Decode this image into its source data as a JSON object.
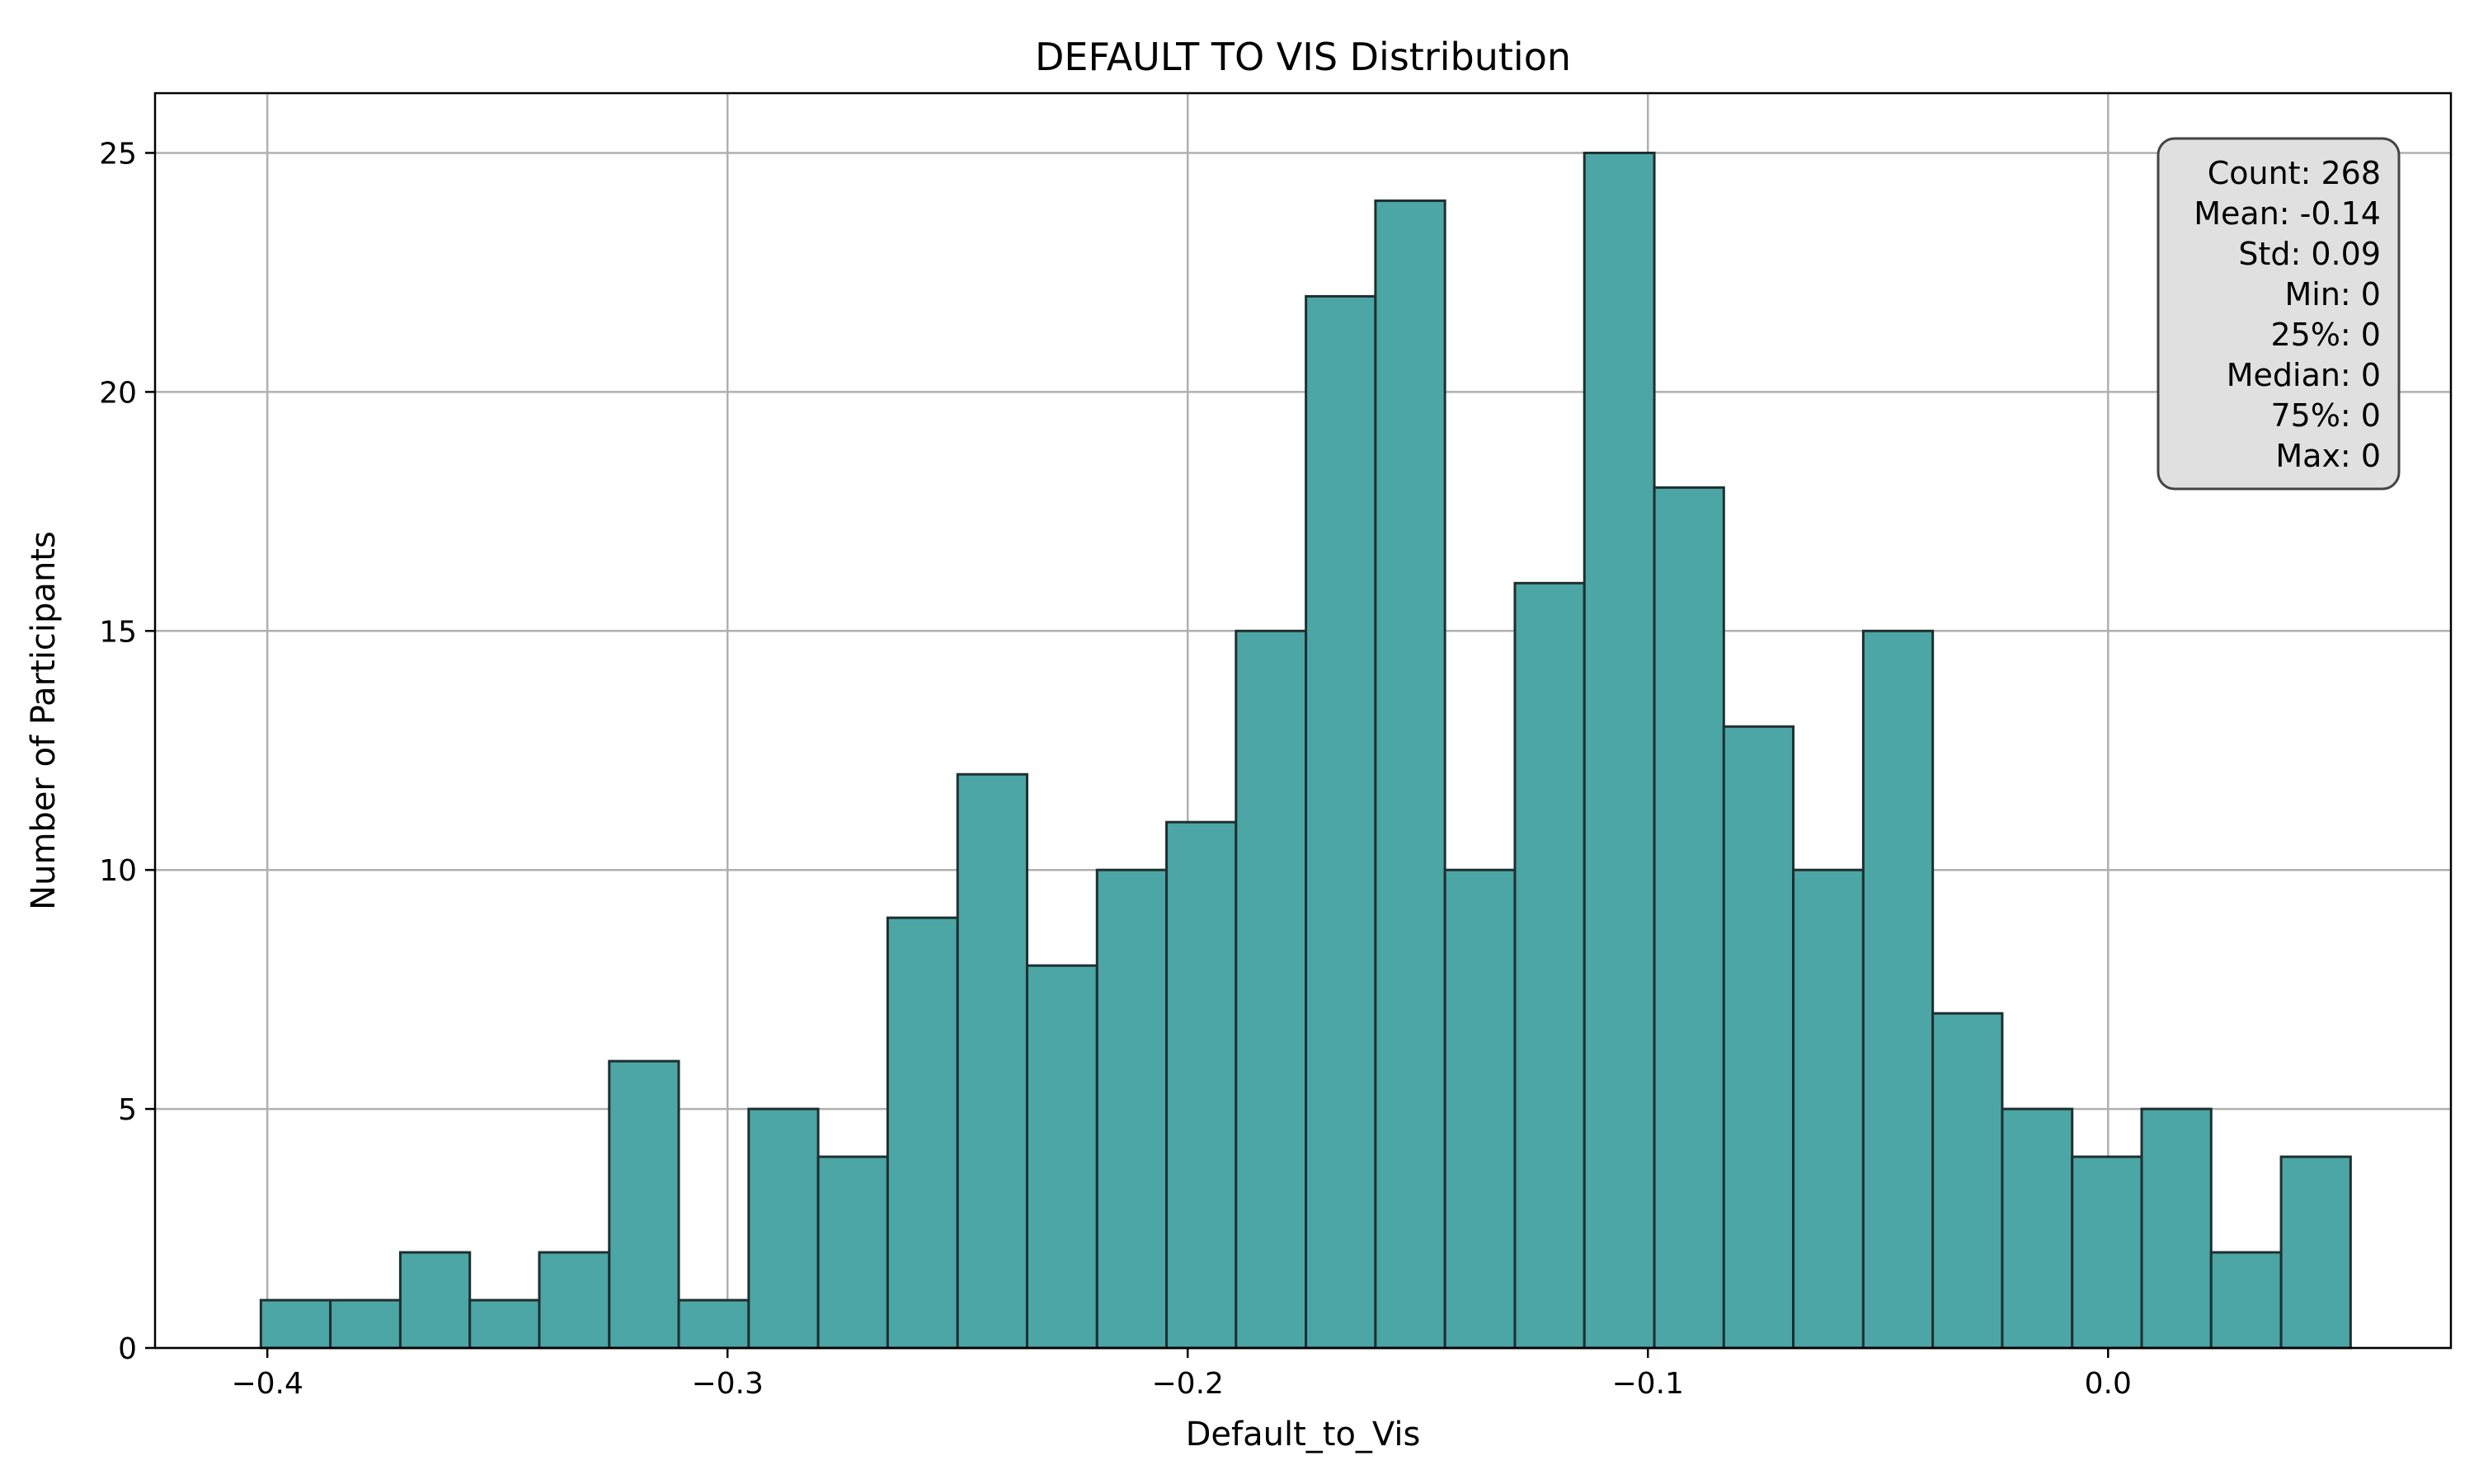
{
  "chart_data": {
    "type": "bar",
    "title": "DEFAULT TO VIS Distribution",
    "xlabel": "Default_to_Vis",
    "ylabel": "Number of Participants",
    "bin_edges": [
      -0.4014,
      -0.3863,
      -0.3711,
      -0.356,
      -0.3409,
      -0.3257,
      -0.3106,
      -0.2954,
      -0.2803,
      -0.2652,
      -0.25,
      -0.2349,
      -0.2197,
      -0.2046,
      -0.1895,
      -0.1743,
      -0.1592,
      -0.1441,
      -0.1289,
      -0.1138,
      -0.0986,
      -0.0835,
      -0.0684,
      -0.0532,
      -0.0381,
      -0.023,
      -0.0078,
      0.0073,
      0.0224,
      0.0376,
      0.0527
    ],
    "counts": [
      1,
      1,
      2,
      1,
      2,
      6,
      1,
      5,
      4,
      9,
      12,
      8,
      10,
      11,
      15,
      22,
      24,
      10,
      16,
      25,
      18,
      13,
      10,
      15,
      7,
      5,
      4,
      5,
      2,
      4
    ],
    "xlim": [
      -0.4244,
      0.0745
    ],
    "ylim": [
      0,
      26.25
    ],
    "xticks": [
      -0.4,
      -0.3,
      -0.2,
      -0.1,
      0.0
    ],
    "xtick_labels": [
      "−0.4",
      "−0.3",
      "−0.2",
      "−0.1",
      "0.0"
    ],
    "yticks": [
      0,
      5,
      10,
      15,
      20,
      25
    ],
    "ytick_labels": [
      "0",
      "5",
      "10",
      "15",
      "20",
      "25"
    ],
    "grid": true,
    "stats_box_position": "top-right",
    "stats": [
      "Count: 268",
      "Mean: -0.14",
      "Std: 0.09",
      "Min: 0",
      "25%: 0",
      "Median: 0",
      "75%: 0",
      "Max: 0"
    ],
    "colors": {
      "bar_fill": "#4ca6a6",
      "bar_edge": "#1f2f2f",
      "grid": "#b0b0b0",
      "stats_box_fill": "#e0e0e0",
      "stats_box_edge": "#444444"
    }
  }
}
